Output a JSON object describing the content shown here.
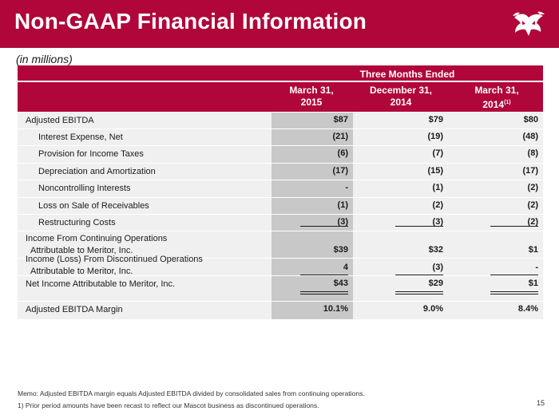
{
  "header": {
    "title": "Non-GAAP Financial Information"
  },
  "subtitle": "(in millions)",
  "table": {
    "group_header": "Three Months Ended",
    "columns": [
      {
        "line1": "March 31,",
        "line2": "2015",
        "note": ""
      },
      {
        "line1": "December 31,",
        "line2": "2014",
        "note": ""
      },
      {
        "line1": "March 31,",
        "line2": "2014",
        "note": "(1)"
      }
    ],
    "rows": [
      {
        "label": "Adjusted EBITDA",
        "values": [
          "$87",
          "$79",
          "$80"
        ]
      },
      {
        "label": "Interest Expense, Net",
        "values": [
          "(21)",
          "(19)",
          "(48)"
        ]
      },
      {
        "label": "Provision for Income Taxes",
        "values": [
          "(6)",
          "(7)",
          "(8)"
        ]
      },
      {
        "label": "Depreciation and Amortization",
        "values": [
          "(17)",
          "(15)",
          "(17)"
        ]
      },
      {
        "label": "Noncontrolling Interests",
        "values": [
          "-",
          "(1)",
          "(2)"
        ]
      },
      {
        "label": "Loss on Sale of Receivables",
        "values": [
          "(1)",
          "(2)",
          "(2)"
        ]
      },
      {
        "label": "Restructuring Costs",
        "values": [
          "(3)",
          "(3)",
          "(2)"
        ]
      },
      {
        "label_line1": "Income From Continuing Operations",
        "label_line2": "Attributable to Meritor, Inc.",
        "values": [
          "$39",
          "$32",
          "$1"
        ]
      },
      {
        "label_line1": "Income (Loss) From Discontinued Operations",
        "label_line2": "Attributable to Meritor, Inc.",
        "values": [
          "4",
          "(3)",
          "-"
        ]
      },
      {
        "label": "Net Income Attributable to Meritor, Inc.",
        "values": [
          "$43",
          "$29",
          "$1"
        ]
      },
      {
        "label": "Adjusted EBITDA Margin",
        "values": [
          "10.1%",
          "9.0%",
          "8.4%"
        ]
      }
    ]
  },
  "footer": {
    "memo": "Memo: Adjusted EBITDA margin equals Adjusted EBITDA divided by consolidated sales from continuing operations.",
    "note": "1)  Prior period amounts have been recast to reflect our Mascot business as discontinued operations.",
    "page_number": "15"
  },
  "colors": {
    "brand_red": "#b0063a",
    "shade_dark": "#c8c8c8",
    "shade_light": "#f0f0f0"
  },
  "icons": {
    "logo": "bull-logo-icon"
  }
}
